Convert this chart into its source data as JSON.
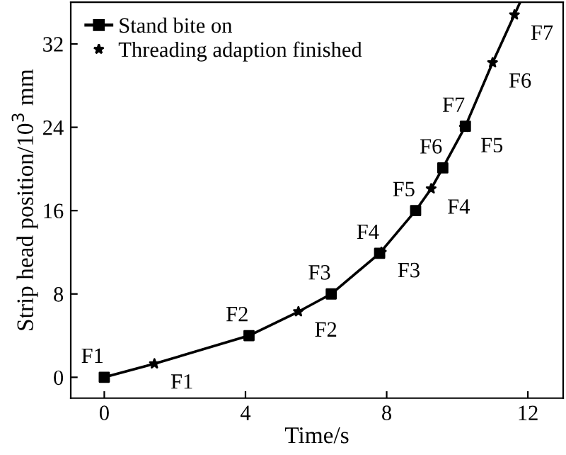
{
  "chart_data": {
    "type": "line",
    "xlabel": "Time/s",
    "ylabel": "Strip head position/10$^{3}$ mm",
    "xlim": [
      -0.95,
      13
    ],
    "ylim": [
      -2,
      36
    ],
    "xticks": [
      0,
      4,
      8,
      12
    ],
    "yticks": [
      0,
      8,
      16,
      24,
      32
    ],
    "grid": false,
    "legend": "top left",
    "series": [
      {
        "name": "Stand bite on",
        "color": "#000000",
        "type": "scatter",
        "marker": "square",
        "line_style": "solid",
        "x": [
          0,
          4.1,
          6.43,
          7.8,
          8.82,
          9.59,
          10.23
        ],
        "values": [
          0,
          4,
          8,
          11.9,
          16,
          20.1,
          24.1
        ]
      },
      {
        "color": "#000000",
        "marker": "none",
        "line_style": "solid",
        "x": [
          0,
          1.42,
          4.1,
          5.5,
          6.43,
          7.8,
          8.82,
          9.26,
          9.59,
          10.23,
          11.0,
          11.62,
          11.78
        ],
        "values": [
          0,
          1.3,
          4,
          6.3,
          8,
          11.9,
          16,
          18.1,
          20.1,
          24.1,
          30.2,
          34.8,
          36
        ]
      },
      {
        "name": "Threading adaption finished",
        "color": "#000000",
        "type": "scatter",
        "marker": "star",
        "x": [
          1.42,
          5.5,
          7.85,
          9.26,
          10.2,
          11.0,
          11.62
        ],
        "values": [
          1.3,
          6.3,
          12,
          18.1,
          24,
          30.2,
          34.8
        ]
      }
    ],
    "annotations": [
      {
        "text": "F1",
        "x": 0,
        "y": 0
      },
      {
        "text": "F2",
        "x": 4.1,
        "y": 4
      },
      {
        "text": "F3",
        "x": 6.43,
        "y": 8
      },
      {
        "text": "F4",
        "x": 7.8,
        "y": 11.9
      },
      {
        "text": "F5",
        "x": 8.82,
        "y": 16
      },
      {
        "text": "F6",
        "x": 9.59,
        "y": 20.1
      },
      {
        "text": "F7",
        "x": 10.23,
        "y": 24.1
      },
      {
        "text": "F1",
        "x": 1.42,
        "y": 1.3
      },
      {
        "text": "F2",
        "x": 5.5,
        "y": 6.3
      },
      {
        "text": "F3",
        "x": 7.85,
        "y": 12
      },
      {
        "text": "F4",
        "x": 9.26,
        "y": 18.1
      },
      {
        "text": "F5",
        "x": 10.2,
        "y": 24
      },
      {
        "text": "F6",
        "x": 11.0,
        "y": 30.2
      },
      {
        "text": "F7",
        "x": 11.62,
        "y": 34.8
      }
    ]
  }
}
